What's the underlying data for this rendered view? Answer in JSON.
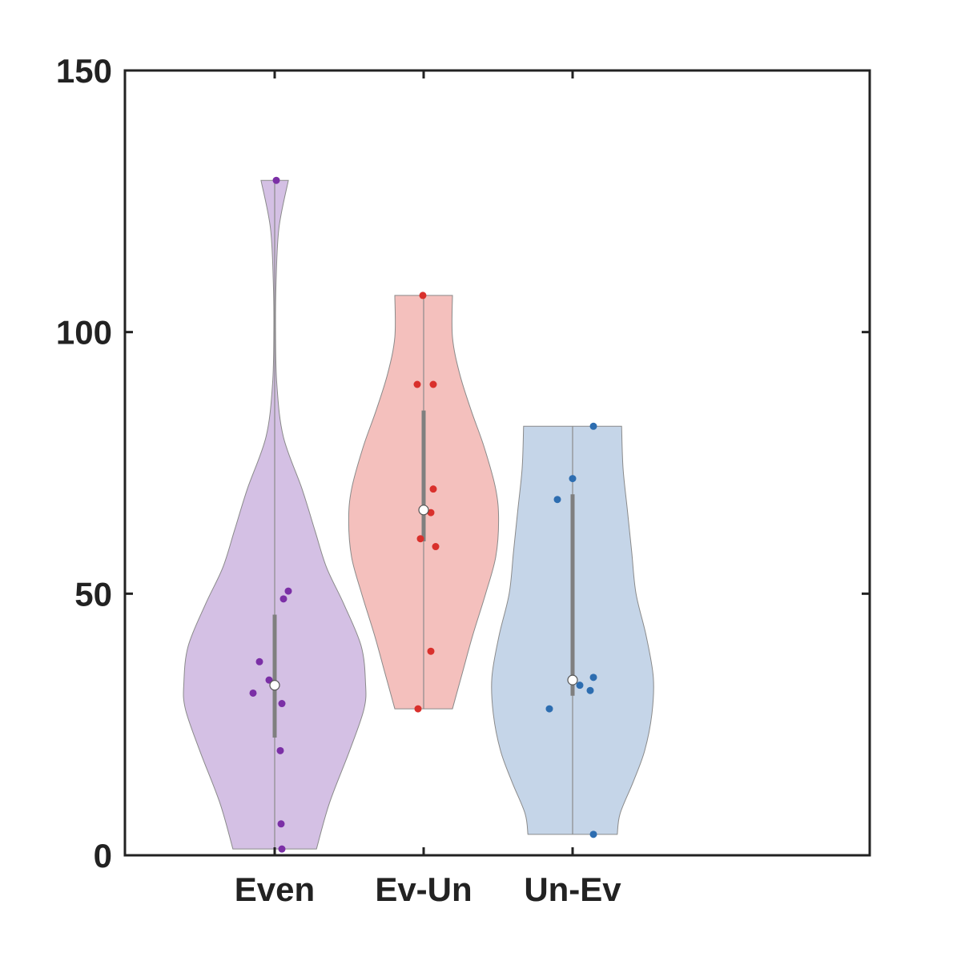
{
  "chart_data": {
    "type": "violin",
    "ylim": [
      0,
      150
    ],
    "yticks": [
      "0",
      "50",
      "100",
      "150"
    ],
    "categories": [
      "Even",
      "Ev-Un",
      "Un-Ev"
    ],
    "grid": false,
    "series": [
      {
        "name": "Even",
        "color": "#7b2fa6",
        "fill": "#d4c0e4",
        "points": [
          {
            "offset": 0.02,
            "y": 129
          },
          {
            "offset": 0.17,
            "y": 50.5
          },
          {
            "offset": 0.11,
            "y": 49
          },
          {
            "offset": -0.19,
            "y": 37
          },
          {
            "offset": -0.07,
            "y": 33.5
          },
          {
            "offset": -0.27,
            "y": 31
          },
          {
            "offset": 0.09,
            "y": 29
          },
          {
            "offset": 0.07,
            "y": 20
          },
          {
            "offset": 0.08,
            "y": 6
          },
          {
            "offset": 0.09,
            "y": 1.2
          }
        ],
        "median": 32.5,
        "q1": 22.5,
        "q3": 46,
        "whisker_low": 1.2,
        "whisker_high": 50.5,
        "min": 1.2,
        "max": 129,
        "density": [
          [
            1.2,
            0.29
          ],
          [
            10,
            0.38
          ],
          [
            20,
            0.52
          ],
          [
            28,
            0.62
          ],
          [
            33,
            0.63
          ],
          [
            40,
            0.6
          ],
          [
            48,
            0.48
          ],
          [
            55,
            0.36
          ],
          [
            62,
            0.28
          ],
          [
            70,
            0.19
          ],
          [
            80,
            0.06
          ],
          [
            90,
            0.015
          ],
          [
            100,
            0.006
          ],
          [
            110,
            0.01
          ],
          [
            120,
            0.03
          ],
          [
            129,
            0.095
          ]
        ]
      },
      {
        "name": "Ev-Un",
        "color": "#d9302c",
        "fill": "#f4c0bd",
        "points": [
          {
            "offset": -0.01,
            "y": 107
          },
          {
            "offset": -0.08,
            "y": 90
          },
          {
            "offset": 0.12,
            "y": 90
          },
          {
            "offset": 0.12,
            "y": 70
          },
          {
            "offset": 0.09,
            "y": 65.5
          },
          {
            "offset": -0.04,
            "y": 60.5
          },
          {
            "offset": 0.15,
            "y": 59
          },
          {
            "offset": 0.09,
            "y": 39
          },
          {
            "offset": -0.07,
            "y": 28
          }
        ],
        "median": 66,
        "q1": 60,
        "q3": 85,
        "whisker_low": 28,
        "whisker_high": 107,
        "min": 28,
        "max": 107,
        "density": [
          [
            28,
            0.2
          ],
          [
            35,
            0.27
          ],
          [
            42,
            0.34
          ],
          [
            50,
            0.43
          ],
          [
            57,
            0.5
          ],
          [
            64,
            0.52
          ],
          [
            70,
            0.5
          ],
          [
            78,
            0.42
          ],
          [
            85,
            0.33
          ],
          [
            92,
            0.25
          ],
          [
            99,
            0.2
          ],
          [
            107,
            0.2
          ]
        ]
      },
      {
        "name": "Un-Ev",
        "color": "#2d6db0",
        "fill": "#c5d5e8",
        "points": [
          {
            "offset": 0.26,
            "y": 82
          },
          {
            "offset": 0.0,
            "y": 72
          },
          {
            "offset": -0.19,
            "y": 68
          },
          {
            "offset": 0.26,
            "y": 34
          },
          {
            "offset": 0.0,
            "y": 33.5
          },
          {
            "offset": 0.09,
            "y": 32.5
          },
          {
            "offset": 0.22,
            "y": 31.5
          },
          {
            "offset": -0.29,
            "y": 28
          },
          {
            "offset": 0.26,
            "y": 4
          }
        ],
        "median": 33.5,
        "q1": 30.5,
        "q3": 69,
        "whisker_low": 4,
        "whisker_high": 82,
        "min": 4,
        "max": 82,
        "density": [
          [
            4,
            0.31
          ],
          [
            8,
            0.33
          ],
          [
            14,
            0.42
          ],
          [
            20,
            0.5
          ],
          [
            27,
            0.55
          ],
          [
            34,
            0.56
          ],
          [
            42,
            0.51
          ],
          [
            50,
            0.44
          ],
          [
            58,
            0.41
          ],
          [
            66,
            0.38
          ],
          [
            74,
            0.35
          ],
          [
            82,
            0.34
          ]
        ]
      }
    ]
  }
}
